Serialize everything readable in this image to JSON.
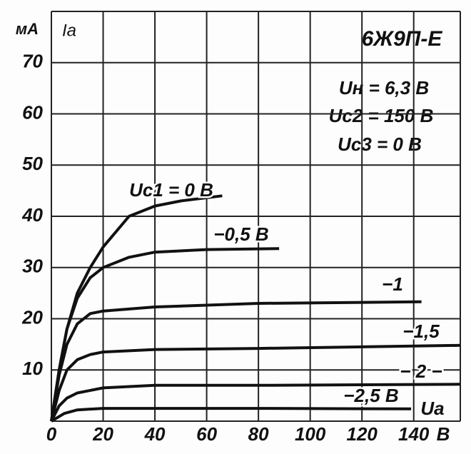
{
  "chart_data": {
    "type": "line",
    "title": "6Ж9П-Е",
    "y_unit": "мА",
    "y_label": "Ia",
    "x_unit": "В",
    "x_label": "Ua",
    "annotations": [
      "Uн = 6,3 В",
      "Uc2 = 150 В",
      "Uc3 = 0 В"
    ],
    "xlim": [
      0,
      158
    ],
    "ylim": [
      0,
      80
    ],
    "xticks": [
      0,
      20,
      40,
      60,
      80,
      100,
      120,
      140
    ],
    "yticks": [
      10,
      20,
      30,
      40,
      50,
      60,
      70
    ],
    "grid": true,
    "series": [
      {
        "name": "Uc1 = 0 В",
        "color": "#111111",
        "x": [
          0,
          3,
          6,
          10,
          15,
          20,
          30,
          40,
          50,
          66
        ],
        "values": [
          0,
          10,
          18,
          25,
          30,
          34,
          40,
          42,
          43,
          44
        ]
      },
      {
        "name": "−0,5 В",
        "color": "#111111",
        "x": [
          0,
          3,
          6,
          10,
          15,
          20,
          30,
          40,
          60,
          88
        ],
        "values": [
          0,
          10,
          18,
          24,
          28,
          30,
          32,
          33,
          33.5,
          33.7
        ]
      },
      {
        "name": "−1",
        "color": "#111111",
        "x": [
          0,
          3,
          6,
          10,
          15,
          20,
          40,
          80,
          143
        ],
        "values": [
          0,
          9,
          15,
          19,
          21,
          21.5,
          22.3,
          23,
          23.3
        ]
      },
      {
        "name": "−1,5",
        "color": "#111111",
        "x": [
          0,
          3,
          6,
          10,
          15,
          20,
          40,
          80,
          158
        ],
        "values": [
          0,
          6,
          10,
          12,
          13,
          13.5,
          14,
          14.2,
          14.8
        ]
      },
      {
        "name": "− 2 −",
        "color": "#111111",
        "x": [
          0,
          3,
          6,
          10,
          20,
          40,
          80,
          158
        ],
        "values": [
          0,
          3,
          4.5,
          5.5,
          6.5,
          7,
          7,
          7.2
        ]
      },
      {
        "name": "−2,5 В",
        "color": "#111111",
        "x": [
          0,
          5,
          10,
          20,
          80,
          139
        ],
        "values": [
          0,
          1.5,
          2.2,
          2.5,
          2.5,
          2.4
        ]
      }
    ]
  }
}
